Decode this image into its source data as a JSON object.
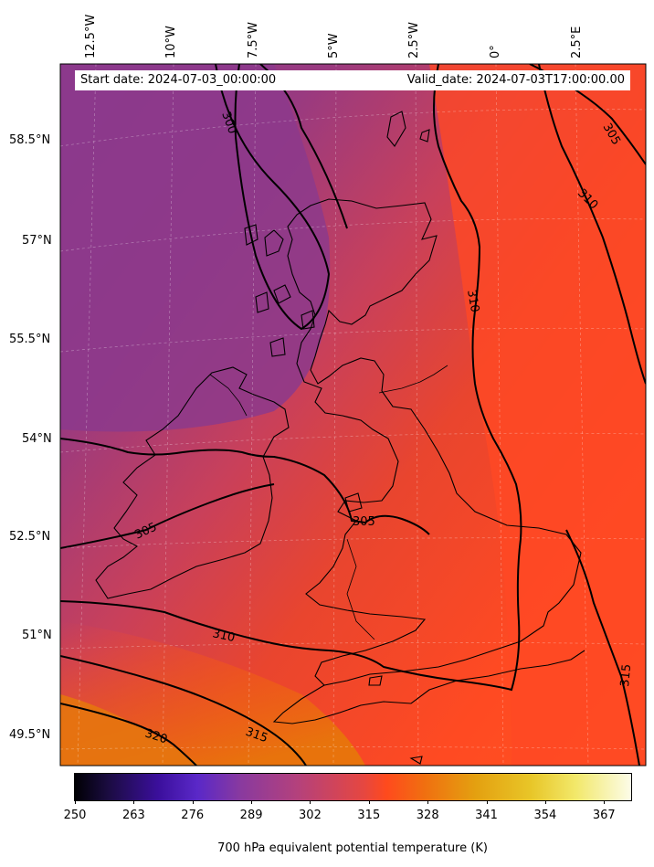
{
  "header": {
    "start_date": "Start date: 2024-07-03_00:00:00",
    "valid_date": "Valid_date: 2024-07-03T17:00:00.00"
  },
  "longitude_labels": [
    "12.5°W",
    "10°W",
    "7.5°W",
    "5°W",
    "2.5°W",
    "0°",
    "2.5°E"
  ],
  "latitude_labels": [
    "58.5°N",
    "57°N",
    "55.5°N",
    "54°N",
    "52.5°N",
    "51°N",
    "49.5°N"
  ],
  "contour_labels": [
    "300",
    "305",
    "305",
    "305",
    "310",
    "310",
    "310",
    "315",
    "315",
    "320"
  ],
  "colorbar": {
    "ticks": [
      "250",
      "263",
      "276",
      "289",
      "302",
      "315",
      "328",
      "341",
      "354",
      "367"
    ],
    "label": "700 hPa equivalent potential temperature (K)",
    "range": [
      250,
      373
    ]
  },
  "colors": {
    "cold_purple": "#8a3a8e",
    "mid_red": "#d8443e",
    "warm_orange": "#ff4a22",
    "hot_orange": "#e8730c"
  }
}
